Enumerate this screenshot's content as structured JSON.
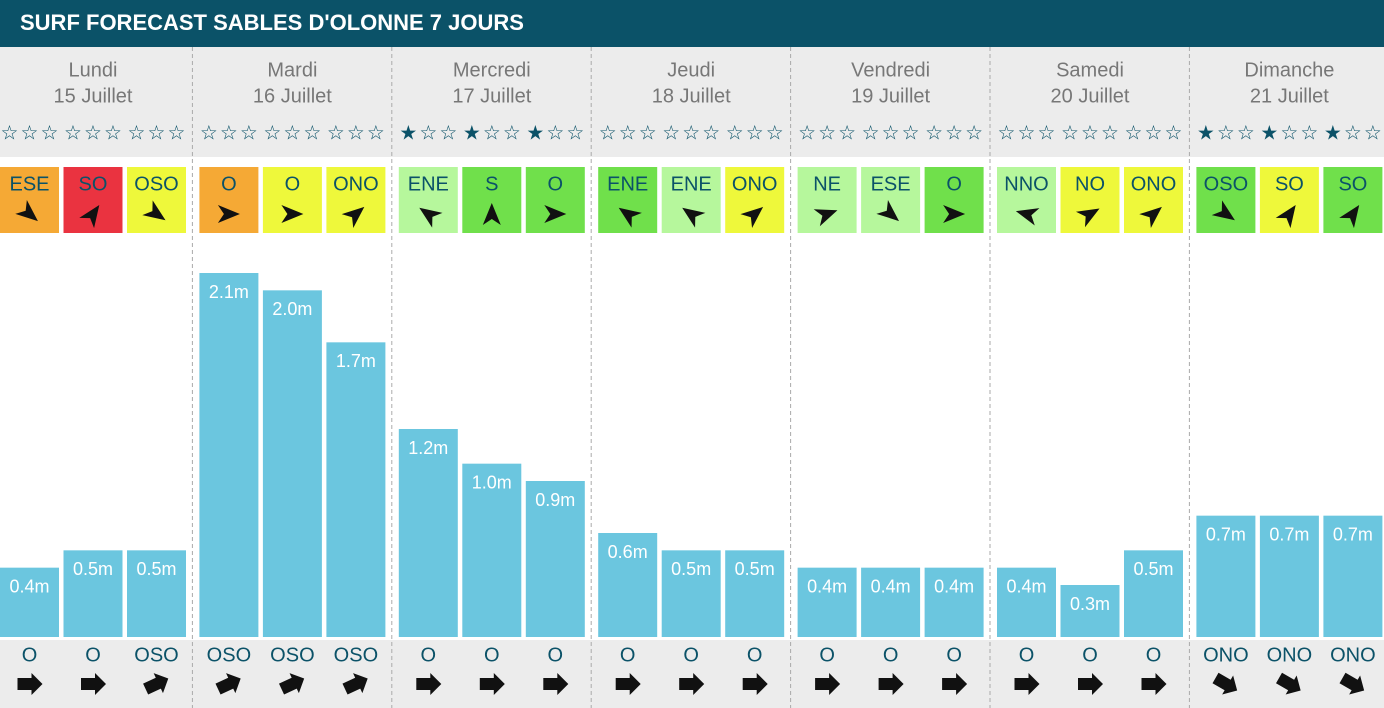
{
  "title": "SURF FORECAST SABLES D'OLONNE 7 JOURS",
  "wave_scale_max": 2.1,
  "days": [
    {
      "name": "Lundi",
      "date": "15 Juillet",
      "slots": [
        {
          "stars": 0,
          "wind": "ESE",
          "wind_color": "#f5a935",
          "wind_angle": 40,
          "wave": 0.4,
          "wave_label": "0.4m",
          "swell": "O",
          "swell_angle": 0
        },
        {
          "stars": 0,
          "wind": "SO",
          "wind_color": "#ea3340",
          "wind_angle": -55,
          "wave": 0.5,
          "wave_label": "0.5m",
          "swell": "O",
          "swell_angle": 0
        },
        {
          "stars": 0,
          "wind": "OSO",
          "wind_color": "#eef83b",
          "wind_angle": 35,
          "wave": 0.5,
          "wave_label": "0.5m",
          "swell": "OSO",
          "swell_angle": -25
        }
      ]
    },
    {
      "name": "Mardi",
      "date": "16 Juillet",
      "slots": [
        {
          "stars": 0,
          "wind": "O",
          "wind_color": "#f5a935",
          "wind_angle": 0,
          "wave": 2.1,
          "wave_label": "2.1m",
          "swell": "OSO",
          "swell_angle": -25
        },
        {
          "stars": 0,
          "wind": "O",
          "wind_color": "#eef83b",
          "wind_angle": 0,
          "wave": 2.0,
          "wave_label": "2.0m",
          "swell": "OSO",
          "swell_angle": -25
        },
        {
          "stars": 0,
          "wind": "ONO",
          "wind_color": "#eef83b",
          "wind_angle": -40,
          "wave": 1.7,
          "wave_label": "1.7m",
          "swell": "OSO",
          "swell_angle": -25
        }
      ]
    },
    {
      "name": "Mercredi",
      "date": "17 Juillet",
      "slots": [
        {
          "stars": 1,
          "wind": "ENE",
          "wind_color": "#b6f79c",
          "wind_angle": -145,
          "wave": 1.2,
          "wave_label": "1.2m",
          "swell": "O",
          "swell_angle": 0
        },
        {
          "stars": 1,
          "wind": "S",
          "wind_color": "#70e04b",
          "wind_angle": -90,
          "wave": 1.0,
          "wave_label": "1.0m",
          "swell": "O",
          "swell_angle": 0
        },
        {
          "stars": 1,
          "wind": "O",
          "wind_color": "#70e04b",
          "wind_angle": 0,
          "wave": 0.9,
          "wave_label": "0.9m",
          "swell": "O",
          "swell_angle": 0
        }
      ]
    },
    {
      "name": "Jeudi",
      "date": "18 Juillet",
      "slots": [
        {
          "stars": 0,
          "wind": "ENE",
          "wind_color": "#70e04b",
          "wind_angle": -145,
          "wave": 0.6,
          "wave_label": "0.6m",
          "swell": "O",
          "swell_angle": 0
        },
        {
          "stars": 0,
          "wind": "ENE",
          "wind_color": "#b6f79c",
          "wind_angle": -145,
          "wave": 0.5,
          "wave_label": "0.5m",
          "swell": "O",
          "swell_angle": 0
        },
        {
          "stars": 0,
          "wind": "ONO",
          "wind_color": "#eef83b",
          "wind_angle": -40,
          "wave": 0.5,
          "wave_label": "0.5m",
          "swell": "O",
          "swell_angle": 0
        }
      ]
    },
    {
      "name": "Vendredi",
      "date": "19 Juillet",
      "slots": [
        {
          "stars": 0,
          "wind": "NE",
          "wind_color": "#b6f79c",
          "wind_angle": -20,
          "wave": 0.4,
          "wave_label": "0.4m",
          "swell": "O",
          "swell_angle": 0
        },
        {
          "stars": 0,
          "wind": "ESE",
          "wind_color": "#b6f79c",
          "wind_angle": 40,
          "wave": 0.4,
          "wave_label": "0.4m",
          "swell": "O",
          "swell_angle": 0
        },
        {
          "stars": 0,
          "wind": "O",
          "wind_color": "#70e04b",
          "wind_angle": 0,
          "wave": 0.4,
          "wave_label": "0.4m",
          "swell": "O",
          "swell_angle": 0
        }
      ]
    },
    {
      "name": "Samedi",
      "date": "20 Juillet",
      "slots": [
        {
          "stars": 0,
          "wind": "NNO",
          "wind_color": "#b6f79c",
          "wind_angle": -165,
          "wave": 0.4,
          "wave_label": "0.4m",
          "swell": "O",
          "swell_angle": 0
        },
        {
          "stars": 0,
          "wind": "NO",
          "wind_color": "#eef83b",
          "wind_angle": -30,
          "wave": 0.3,
          "wave_label": "0.3m",
          "swell": "O",
          "swell_angle": 0
        },
        {
          "stars": 0,
          "wind": "ONO",
          "wind_color": "#eef83b",
          "wind_angle": -40,
          "wave": 0.5,
          "wave_label": "0.5m",
          "swell": "O",
          "swell_angle": 0
        }
      ]
    },
    {
      "name": "Dimanche",
      "date": "21 Juillet",
      "slots": [
        {
          "stars": 1,
          "wind": "OSO",
          "wind_color": "#70e04b",
          "wind_angle": 35,
          "wave": 0.7,
          "wave_label": "0.7m",
          "swell": "ONO",
          "swell_angle": 30
        },
        {
          "stars": 1,
          "wind": "SO",
          "wind_color": "#eef83b",
          "wind_angle": -55,
          "wave": 0.7,
          "wave_label": "0.7m",
          "swell": "ONO",
          "swell_angle": 30
        },
        {
          "stars": 1,
          "wind": "SO",
          "wind_color": "#70e04b",
          "wind_angle": -55,
          "wave": 0.7,
          "wave_label": "0.7m",
          "swell": "ONO",
          "swell_angle": 30
        }
      ]
    }
  ]
}
